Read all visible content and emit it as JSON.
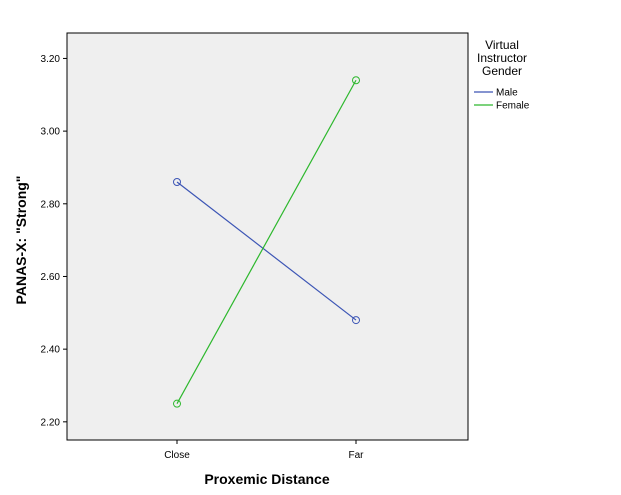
{
  "chart_data": {
    "type": "line",
    "title": "",
    "xlabel": "Proxemic Distance",
    "ylabel": "PANAS-X: \"Strong\"",
    "categories": [
      "Close",
      "Far"
    ],
    "ylim": [
      2.15,
      3.27
    ],
    "yticks": [
      2.2,
      2.4,
      2.6,
      2.8,
      3.0,
      3.2
    ],
    "ytick_labels": [
      "2.20",
      "2.40",
      "2.60",
      "2.80",
      "3.00",
      "3.20"
    ],
    "grid": false,
    "legend": {
      "title_lines": [
        "Virtual",
        "Instructor",
        "Gender"
      ],
      "placement": "right"
    },
    "series": [
      {
        "name": "Male",
        "values": [
          2.86,
          2.48
        ],
        "color": "#3c55b5"
      },
      {
        "name": "Female",
        "values": [
          2.25,
          3.14
        ],
        "color": "#2db82d"
      }
    ],
    "plot_background": "#efefef",
    "marker": "open-circle"
  }
}
